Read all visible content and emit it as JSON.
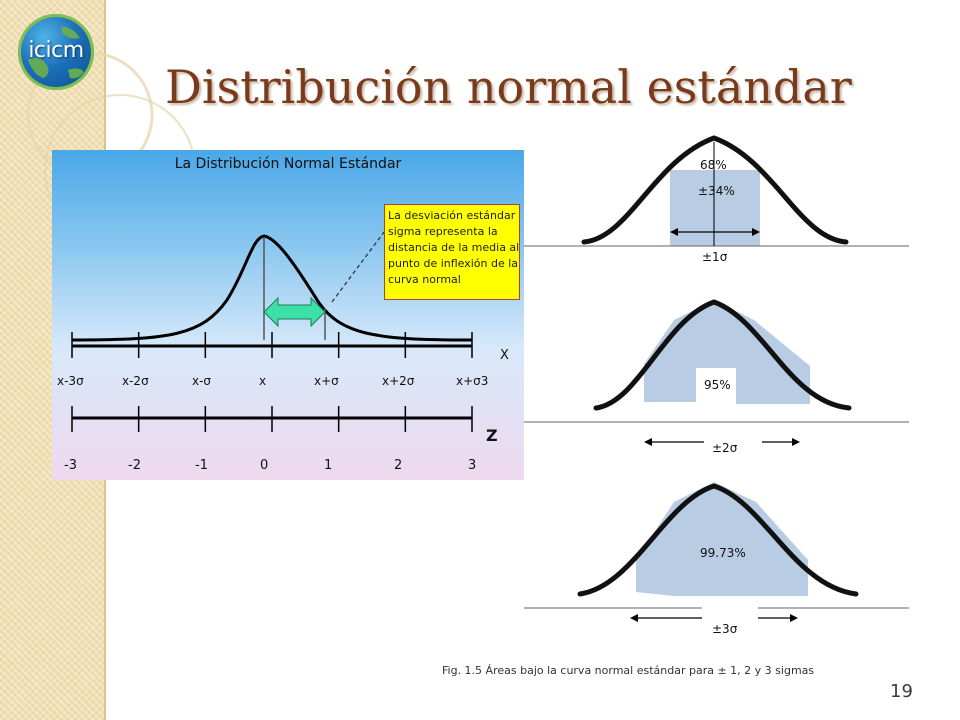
{
  "slide": {
    "title": "Distribución normal estándar",
    "page_number": "19",
    "logo_text": "icicm",
    "caption": "Fig. 1.5 Áreas bajo la curva normal estándar para ± 1, 2 y 3 sigmas"
  },
  "left_figure": {
    "title": "La Distribución Normal Estándar",
    "note_lines": [
      "La desviación estándar",
      "sigma representa la",
      "distancia de la media al",
      "punto de inflexión de la",
      "curva normal"
    ],
    "x_axis_label": "X",
    "x_ticks": [
      "x-3σ",
      "x-2σ",
      "x-σ",
      "x",
      "x+σ",
      "x+2σ",
      "x+σ3"
    ],
    "z_axis_label": "Z",
    "z_ticks": [
      "-3",
      "-2",
      "-1",
      "0",
      "1",
      "2",
      "3"
    ],
    "colors": {
      "note_bg": "#ffff00",
      "arrow": "#3de0a6"
    }
  },
  "right_figure": {
    "panels": [
      {
        "percent": "68%",
        "half_percent": "±34%",
        "sigma_label": "±1σ"
      },
      {
        "percent": "95%",
        "sigma_label": "±2σ"
      },
      {
        "percent": "99.73%",
        "sigma_label": "±3σ"
      }
    ],
    "colors": {
      "area": "#b8cce4",
      "curve": "#111111"
    }
  }
}
